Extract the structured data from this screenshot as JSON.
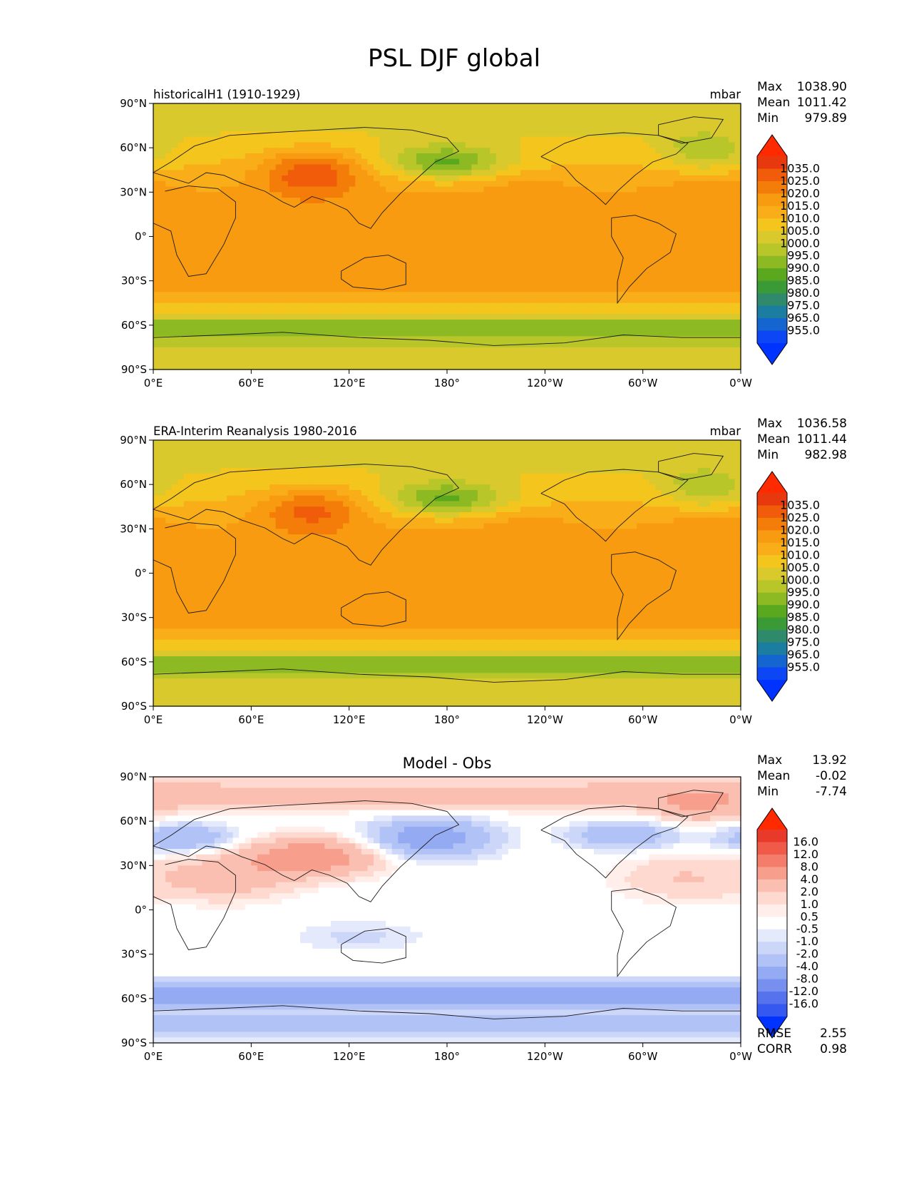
{
  "figure_title": "PSL DJF global",
  "chart_data": [
    {
      "type": "heatmap",
      "subtitle_left": "historicalH1 (1910-1929)",
      "units": "mbar",
      "stats": [
        {
          "label": "Max",
          "value": "1038.90"
        },
        {
          "label": "Mean",
          "value": "1011.42"
        },
        {
          "label": "Min",
          "value": "979.89"
        }
      ],
      "x_ticks": [
        "0°E",
        "60°E",
        "120°E",
        "180°",
        "120°W",
        "60°W",
        "0°W"
      ],
      "y_ticks": [
        "90°N",
        "60°N",
        "30°N",
        "0°",
        "30°S",
        "60°S",
        "90°S"
      ],
      "colorbar": {
        "labels": [
          "1035.0",
          "1025.0",
          "1020.0",
          "1015.0",
          "1010.0",
          "1005.0",
          "1000.0",
          "995.0",
          "990.0",
          "985.0",
          "980.0",
          "975.0",
          "965.0",
          "955.0"
        ],
        "colors": [
          "#e8380d",
          "#f05c0a",
          "#f47d09",
          "#f89b10",
          "#f9ae19",
          "#f4c51d",
          "#d9c92c",
          "#b8c62a",
          "#8dba23",
          "#5aa81e",
          "#3a9a36",
          "#2f8a6c",
          "#1b7ea0",
          "#1565d0",
          "#0d46f5"
        ],
        "top_color": "#ff2a00",
        "bottom_color": "#0033ff"
      }
    },
    {
      "type": "heatmap",
      "subtitle_left": "ERA-Interim Reanalysis 1980-2016",
      "units": "mbar",
      "stats": [
        {
          "label": "Max",
          "value": "1036.58"
        },
        {
          "label": "Mean",
          "value": "1011.44"
        },
        {
          "label": "Min",
          "value": "982.98"
        }
      ],
      "x_ticks": [
        "0°E",
        "60°E",
        "120°E",
        "180°",
        "120°W",
        "60°W",
        "0°W"
      ],
      "y_ticks": [
        "90°N",
        "60°N",
        "30°N",
        "0°",
        "30°S",
        "60°S",
        "90°S"
      ],
      "colorbar": {
        "labels": [
          "1035.0",
          "1025.0",
          "1020.0",
          "1015.0",
          "1010.0",
          "1005.0",
          "1000.0",
          "995.0",
          "990.0",
          "985.0",
          "980.0",
          "975.0",
          "965.0",
          "955.0"
        ],
        "colors": [
          "#e8380d",
          "#f05c0a",
          "#f47d09",
          "#f89b10",
          "#f9ae19",
          "#f4c51d",
          "#d9c92c",
          "#b8c62a",
          "#8dba23",
          "#5aa81e",
          "#3a9a36",
          "#2f8a6c",
          "#1b7ea0",
          "#1565d0",
          "#0d46f5"
        ],
        "top_color": "#ff2a00",
        "bottom_color": "#0033ff"
      }
    },
    {
      "type": "heatmap",
      "title": "Model - Obs",
      "stats": [
        {
          "label": "Max",
          "value": "13.92"
        },
        {
          "label": "Mean",
          "value": "-0.02"
        },
        {
          "label": "Min",
          "value": "-7.74"
        }
      ],
      "x_ticks": [
        "0°E",
        "60°E",
        "120°E",
        "180°",
        "120°W",
        "60°W",
        "0°W"
      ],
      "y_ticks": [
        "90°N",
        "60°N",
        "30°N",
        "0°",
        "30°S",
        "60°S",
        "90°S"
      ],
      "colorbar": {
        "labels": [
          "16.0",
          "12.0",
          "8.0",
          "4.0",
          "2.0",
          "1.0",
          "0.5",
          "-0.5",
          "-1.0",
          "-2.0",
          "-4.0",
          "-8.0",
          "-12.0",
          "-16.0"
        ],
        "colors": [
          "#e83a2a",
          "#ef5b48",
          "#f37d6a",
          "#f79e8d",
          "#fabfb0",
          "#fdd9cf",
          "#ffeeea",
          "#ffffff",
          "#e4e9fb",
          "#ccd6f8",
          "#b1c2f6",
          "#94aaf3",
          "#7790ef",
          "#5672ec",
          "#3559f0"
        ],
        "top_color": "#ff2a00",
        "bottom_color": "#0033ff"
      },
      "metrics": [
        {
          "label": "RMSE",
          "value": "2.55"
        },
        {
          "label": "CORR",
          "value": "0.98"
        }
      ]
    }
  ]
}
